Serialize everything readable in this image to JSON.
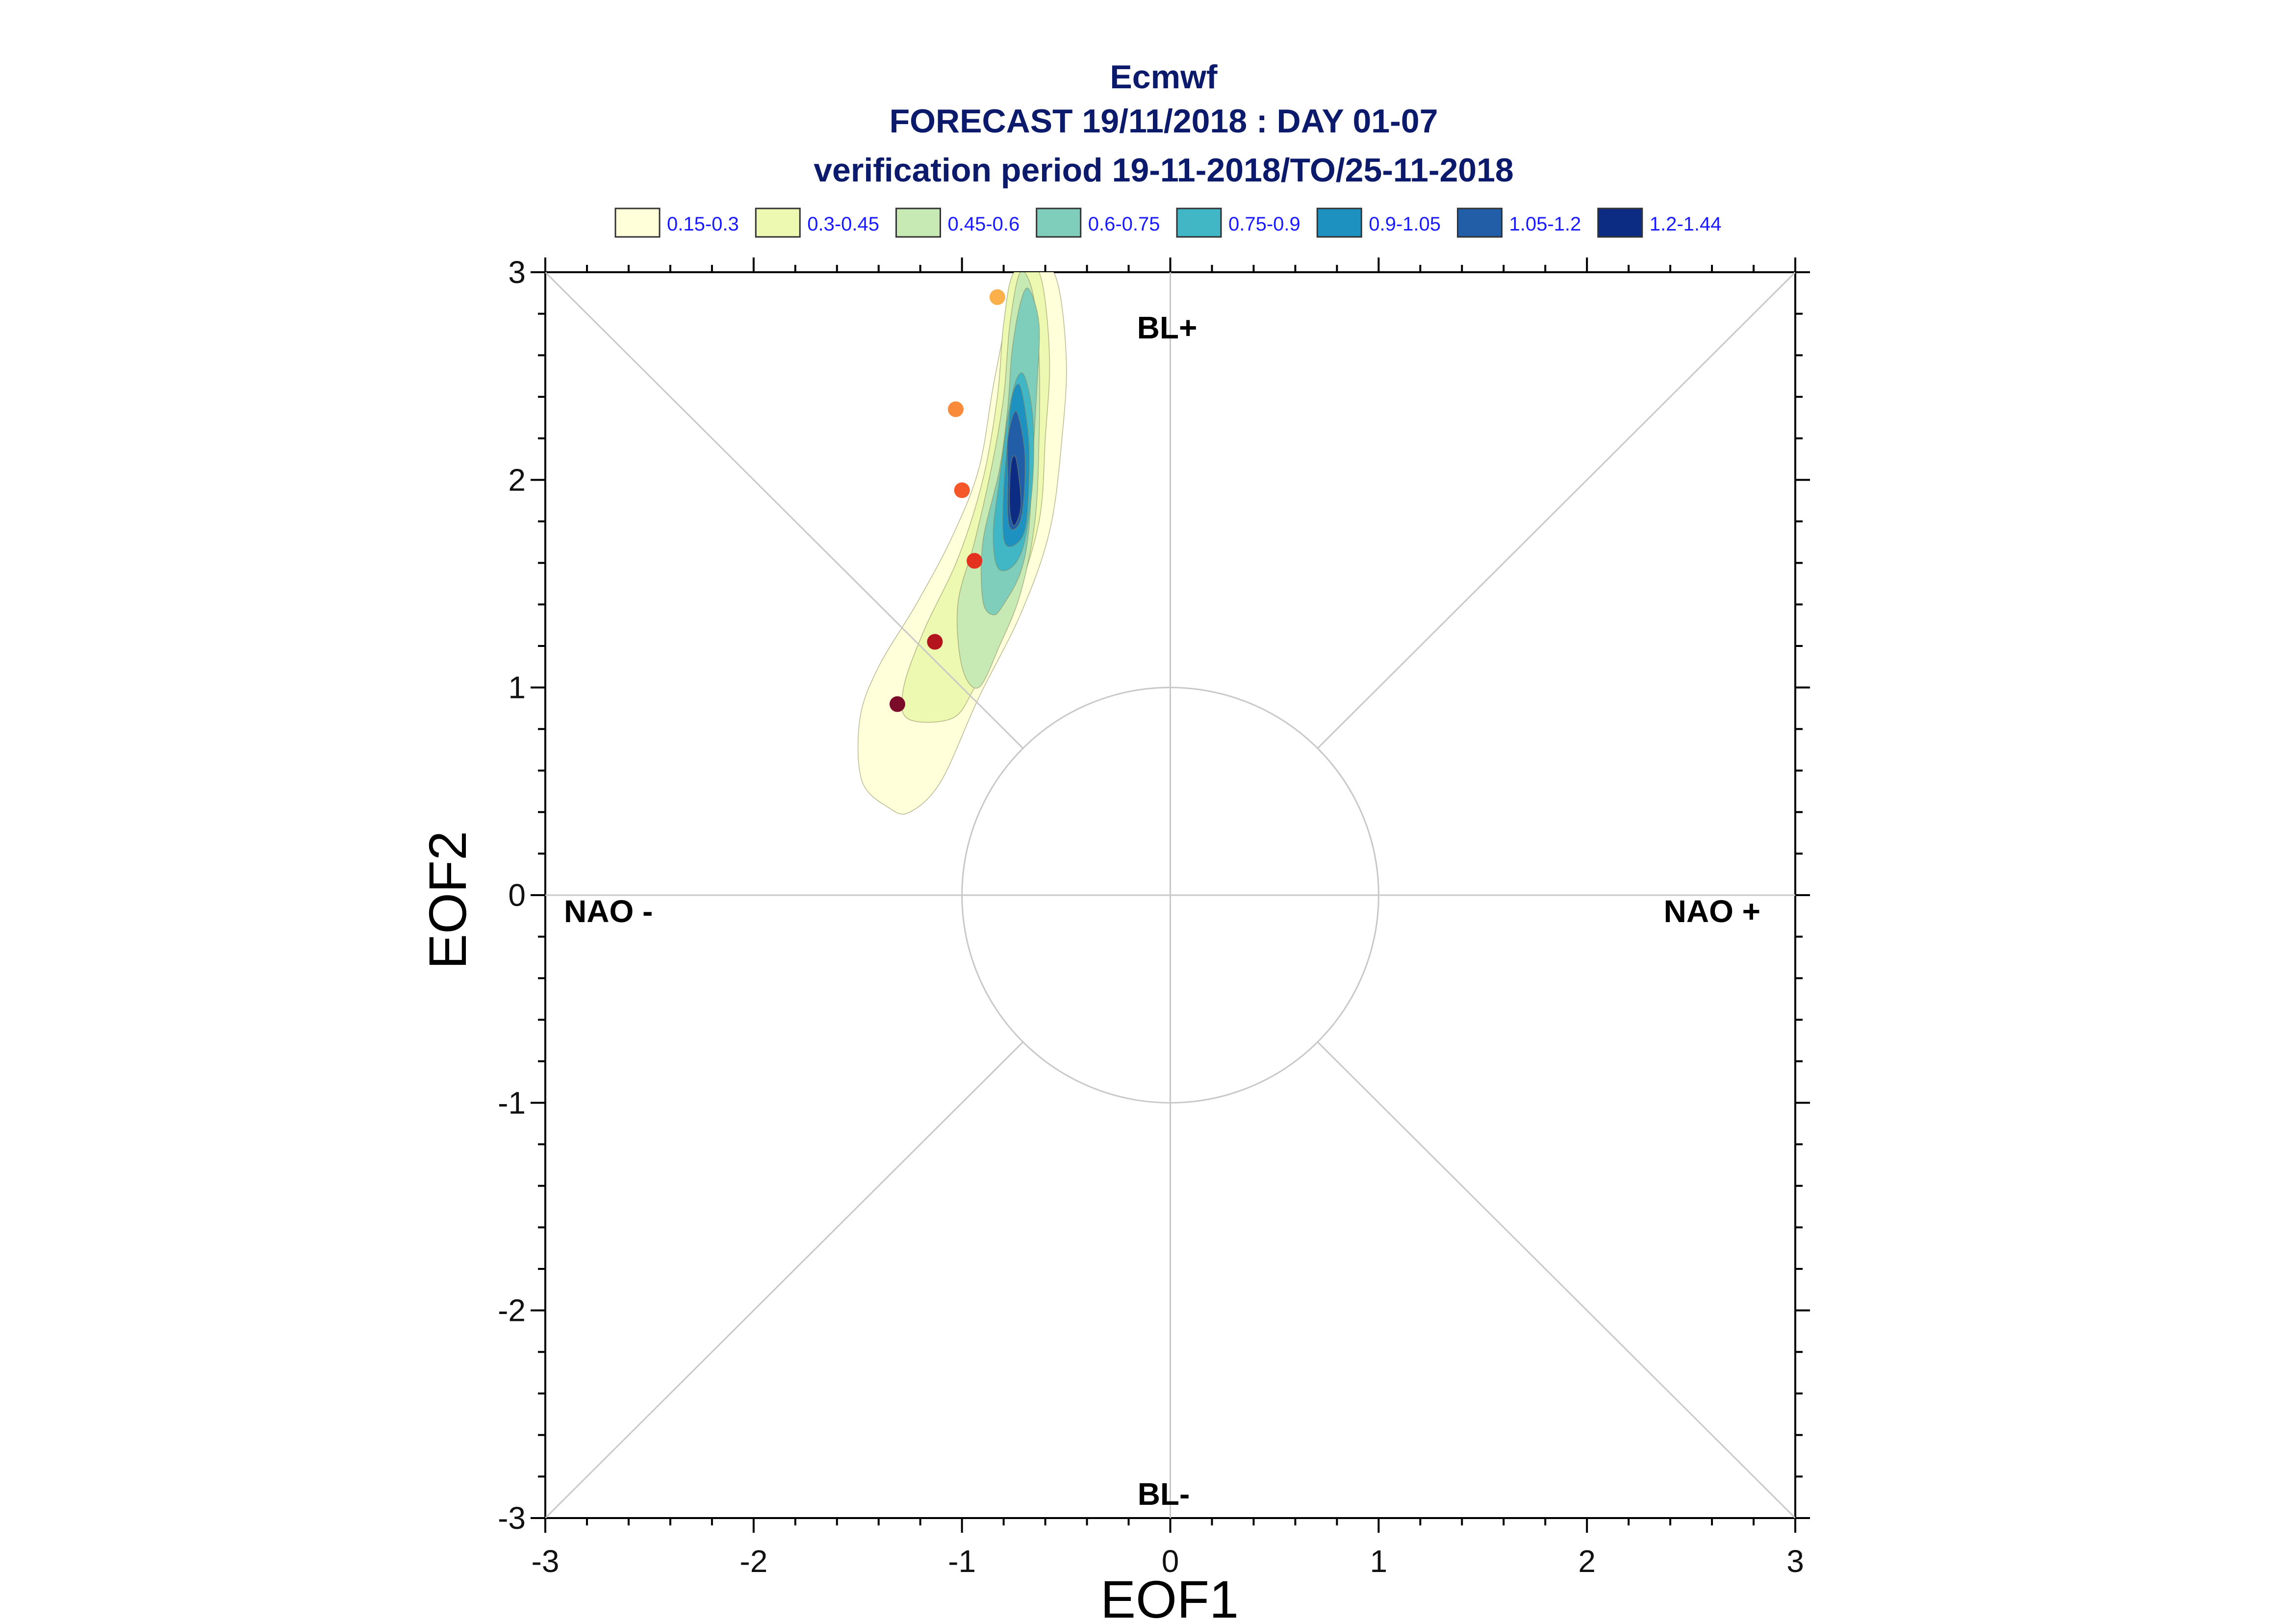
{
  "chart_data": {
    "type": "contour",
    "title": "Ecmwf",
    "subtitle": "FORECAST 19/11/2018 : DAY 01-07",
    "subtitle2": "verification period 19-11-2018/TO/25-11-2018",
    "xlabel": "EOF1",
    "ylabel": "EOF2",
    "xlim": [
      -3,
      3
    ],
    "ylim": [
      -3,
      3
    ],
    "xticks": [
      "-3",
      "-2",
      "-1",
      "0",
      "1",
      "2",
      "3"
    ],
    "yticks": [
      "-3",
      "-2",
      "-1",
      "0",
      "1",
      "2",
      "3"
    ],
    "legend": [
      {
        "label": "0.15-0.3",
        "color": "#ffffd9"
      },
      {
        "label": "0.3-0.45",
        "color": "#edf8b1"
      },
      {
        "label": "0.45-0.6",
        "color": "#c7e9b4"
      },
      {
        "label": "0.6-0.75",
        "color": "#7fcdbb"
      },
      {
        "label": "0.75-0.9",
        "color": "#41b6c4"
      },
      {
        "label": "0.9-1.05",
        "color": "#1d91c0"
      },
      {
        "label": "1.05-1.2",
        "color": "#225ea8"
      },
      {
        "label": "1.2-1.44",
        "color": "#0c2c84"
      }
    ],
    "regions": {
      "top": "BL+",
      "bottom": "BL-",
      "left": "NAO -",
      "right": "NAO +"
    },
    "unit_circle_radius": 1,
    "trajectory": [
      {
        "x": -1.31,
        "y": 0.92,
        "color": "#7a0c2a"
      },
      {
        "x": -1.13,
        "y": 1.22,
        "color": "#b3141e"
      },
      {
        "x": -0.94,
        "y": 1.61,
        "color": "#e3301f"
      },
      {
        "x": -1.0,
        "y": 1.95,
        "color": "#f4582a"
      },
      {
        "x": -1.03,
        "y": 2.34,
        "color": "#f98a3a"
      },
      {
        "x": -0.83,
        "y": 2.88,
        "color": "#fbb04c"
      }
    ],
    "contours": [
      {
        "level": "0.15-0.3",
        "color": "#ffffd9",
        "points": [
          [
            -0.72,
            3.0
          ],
          [
            -0.56,
            3.0
          ],
          [
            -0.5,
            2.6
          ],
          [
            -0.52,
            2.2
          ],
          [
            -0.58,
            1.75
          ],
          [
            -0.72,
            1.35
          ],
          [
            -0.92,
            0.95
          ],
          [
            -1.1,
            0.55
          ],
          [
            -1.25,
            0.4
          ],
          [
            -1.35,
            0.42
          ],
          [
            -1.48,
            0.55
          ],
          [
            -1.49,
            0.85
          ],
          [
            -1.4,
            1.1
          ],
          [
            -1.22,
            1.4
          ],
          [
            -1.05,
            1.72
          ],
          [
            -0.92,
            2.05
          ],
          [
            -0.85,
            2.45
          ],
          [
            -0.78,
            2.8
          ]
        ]
      },
      {
        "level": "0.3-0.45",
        "color": "#edf8b1",
        "points": [
          [
            -0.75,
            3.0
          ],
          [
            -0.63,
            3.0
          ],
          [
            -0.58,
            2.6
          ],
          [
            -0.6,
            2.2
          ],
          [
            -0.63,
            1.8
          ],
          [
            -0.75,
            1.4
          ],
          [
            -0.85,
            1.2
          ],
          [
            -0.95,
            0.98
          ],
          [
            -1.05,
            0.85
          ],
          [
            -1.26,
            0.85
          ],
          [
            -1.28,
            1.0
          ],
          [
            -1.18,
            1.28
          ],
          [
            -1.02,
            1.62
          ],
          [
            -0.9,
            2.0
          ],
          [
            -0.83,
            2.4
          ],
          [
            -0.8,
            2.75
          ]
        ]
      },
      {
        "level": "0.45-0.6",
        "color": "#c7e9b4",
        "points": [
          [
            -0.72,
            3.0
          ],
          [
            -0.66,
            2.9
          ],
          [
            -0.63,
            2.6
          ],
          [
            -0.63,
            2.2
          ],
          [
            -0.65,
            1.8
          ],
          [
            -0.72,
            1.45
          ],
          [
            -0.82,
            1.2
          ],
          [
            -0.92,
            1.0
          ],
          [
            -1.0,
            1.1
          ],
          [
            -1.02,
            1.4
          ],
          [
            -0.94,
            1.7
          ],
          [
            -0.86,
            2.05
          ],
          [
            -0.8,
            2.4
          ],
          [
            -0.77,
            2.75
          ]
        ]
      },
      {
        "level": "0.6-0.75",
        "color": "#7fcdbb",
        "points": [
          [
            -0.68,
            2.92
          ],
          [
            -0.63,
            2.75
          ],
          [
            -0.64,
            2.45
          ],
          [
            -0.66,
            2.1
          ],
          [
            -0.68,
            1.75
          ],
          [
            -0.72,
            1.55
          ],
          [
            -0.8,
            1.4
          ],
          [
            -0.85,
            1.35
          ],
          [
            -0.9,
            1.42
          ],
          [
            -0.9,
            1.7
          ],
          [
            -0.82,
            2.05
          ],
          [
            -0.78,
            2.35
          ],
          [
            -0.76,
            2.62
          ],
          [
            -0.72,
            2.85
          ]
        ]
      },
      {
        "level": "0.75-0.9",
        "color": "#41b6c4",
        "points": [
          [
            -0.7,
            2.5
          ],
          [
            -0.66,
            2.3
          ],
          [
            -0.66,
            2.0
          ],
          [
            -0.7,
            1.7
          ],
          [
            -0.76,
            1.58
          ],
          [
            -0.83,
            1.58
          ],
          [
            -0.85,
            1.75
          ],
          [
            -0.82,
            2.0
          ],
          [
            -0.78,
            2.3
          ],
          [
            -0.74,
            2.48
          ]
        ]
      },
      {
        "level": "0.9-1.05",
        "color": "#1d91c0",
        "points": [
          [
            -0.72,
            2.45
          ],
          [
            -0.68,
            2.2
          ],
          [
            -0.68,
            1.95
          ],
          [
            -0.7,
            1.75
          ],
          [
            -0.76,
            1.68
          ],
          [
            -0.8,
            1.72
          ],
          [
            -0.8,
            1.95
          ],
          [
            -0.78,
            2.2
          ],
          [
            -0.76,
            2.4
          ]
        ]
      },
      {
        "level": "1.05-1.2",
        "color": "#225ea8",
        "points": [
          [
            -0.74,
            2.33
          ],
          [
            -0.7,
            2.15
          ],
          [
            -0.7,
            1.95
          ],
          [
            -0.72,
            1.8
          ],
          [
            -0.76,
            1.76
          ],
          [
            -0.78,
            1.82
          ],
          [
            -0.78,
            2.0
          ],
          [
            -0.78,
            2.2
          ]
        ]
      },
      {
        "level": "1.2-1.44",
        "color": "#0c2c84",
        "points": [
          [
            -0.74,
            2.1
          ],
          [
            -0.72,
            1.95
          ],
          [
            -0.72,
            1.85
          ],
          [
            -0.75,
            1.78
          ],
          [
            -0.77,
            1.85
          ],
          [
            -0.77,
            2.0
          ],
          [
            -0.76,
            2.1
          ]
        ]
      }
    ]
  }
}
